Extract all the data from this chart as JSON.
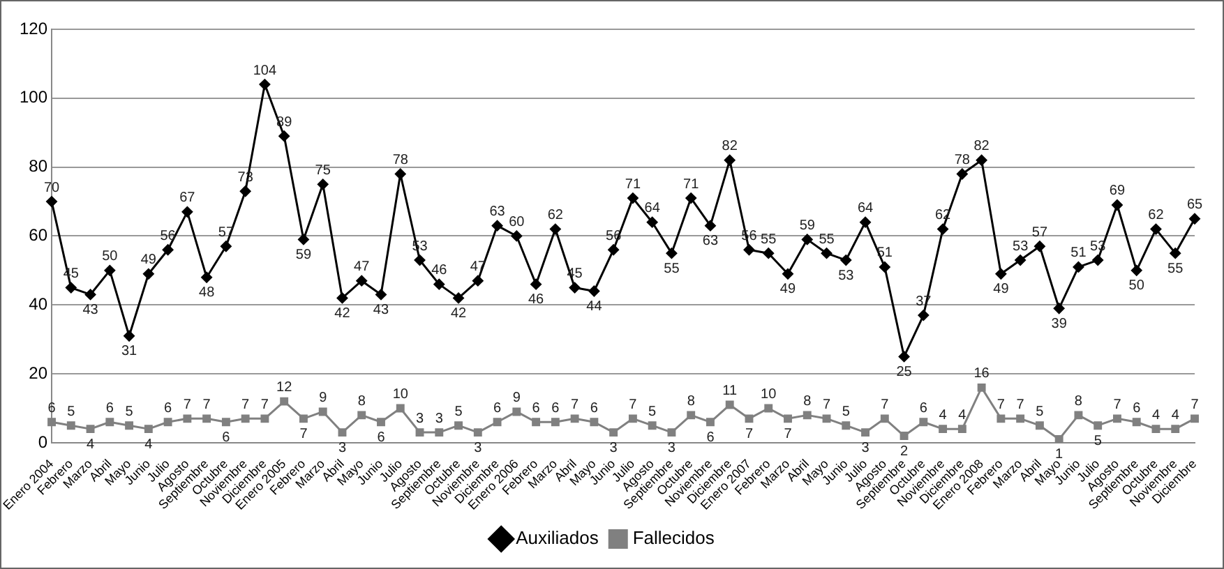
{
  "chart_data": {
    "type": "line",
    "categories": [
      "Enero 2004",
      "Febrero",
      "Marzo",
      "Abril",
      "Mayo",
      "Junio",
      "Julio",
      "Agosto",
      "Septiembre",
      "Octubre",
      "Noviembre",
      "Diciembre",
      "Enero 2005",
      "Febrero",
      "Marzo",
      "Abril",
      "Mayo",
      "Junio",
      "Julio",
      "Agosto",
      "Septiembre",
      "Octubre",
      "Noviembre",
      "Diciembre",
      "Enero 2006",
      "Febrero",
      "Marzo",
      "Abril",
      "Mayo",
      "Junio",
      "Julio",
      "Agosto",
      "Septiembre",
      "Octubre",
      "Noviembre",
      "Diciembre",
      "Enero 2007",
      "Febrero",
      "Marzo",
      "Abril",
      "Mayo",
      "Junio",
      "Julio",
      "Agosto",
      "Septiembre",
      "Octubre",
      "Noviembre",
      "Diciembre",
      "Enero 2008",
      "Febrero",
      "Marzo",
      "Abril",
      "Mayo",
      "Junio",
      "Julio",
      "Agosto",
      "Septiembre",
      "Octubre",
      "Noviembre",
      "Diciembre"
    ],
    "series": [
      {
        "name": "Auxiliados",
        "color": "#000000",
        "marker": "diamond",
        "values": [
          70,
          45,
          43,
          50,
          31,
          49,
          56,
          67,
          48,
          57,
          73,
          104,
          89,
          59,
          75,
          42,
          47,
          43,
          78,
          53,
          46,
          42,
          47,
          63,
          60,
          46,
          62,
          45,
          44,
          56,
          71,
          64,
          55,
          71,
          63,
          82,
          56,
          55,
          49,
          59,
          55,
          53,
          64,
          51,
          25,
          37,
          62,
          78,
          82,
          49,
          53,
          57,
          39,
          51,
          53,
          69,
          50,
          62,
          55,
          65
        ]
      },
      {
        "name": "Fallecidos",
        "color": "#808080",
        "marker": "square",
        "values": [
          6,
          5,
          4,
          6,
          5,
          4,
          6,
          7,
          7,
          6,
          7,
          7,
          12,
          7,
          9,
          3,
          8,
          6,
          10,
          3,
          3,
          5,
          3,
          6,
          9,
          6,
          6,
          7,
          6,
          3,
          7,
          5,
          3,
          8,
          6,
          11,
          7,
          10,
          7,
          8,
          7,
          5,
          3,
          7,
          2,
          6,
          4,
          4,
          16,
          7,
          7,
          5,
          1,
          8,
          5,
          7,
          6,
          4,
          4,
          7
        ]
      }
    ],
    "ylim": [
      0,
      120
    ],
    "yticks": [
      0,
      20,
      40,
      60,
      80,
      100,
      120
    ],
    "grid": "y",
    "legend": "bottom",
    "data_labels": true,
    "line_style": "solid"
  }
}
